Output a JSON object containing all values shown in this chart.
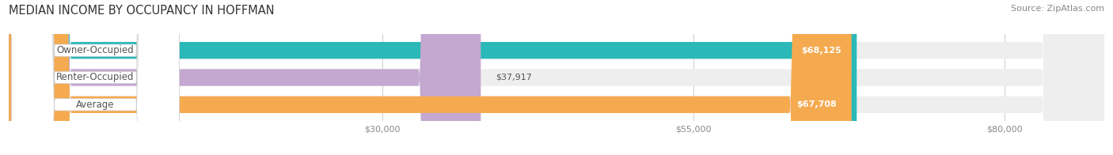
{
  "title": "MEDIAN INCOME BY OCCUPANCY IN HOFFMAN",
  "source": "Source: ZipAtlas.com",
  "categories": [
    "Owner-Occupied",
    "Renter-Occupied",
    "Average"
  ],
  "values": [
    68125,
    37917,
    67708
  ],
  "labels": [
    "$68,125",
    "$37,917",
    "$67,708"
  ],
  "bar_colors": [
    "#2ab8b8",
    "#c4a8d0",
    "#f5aa50"
  ],
  "bar_bg_colors": [
    "#eeeeee",
    "#eeeeee",
    "#eeeeee"
  ],
  "x_ticks": [
    30000,
    55000,
    80000
  ],
  "x_tick_labels": [
    "$30,000",
    "$55,000",
    "$80,000"
  ],
  "xlim_min": 0,
  "xlim_max": 88000,
  "label_inside_threshold": 50000,
  "background_color": "#ffffff",
  "title_fontsize": 10.5,
  "source_fontsize": 8,
  "bar_label_fontsize": 8,
  "cat_label_fontsize": 8.5,
  "tick_fontsize": 8,
  "cat_label_color": "#555555"
}
